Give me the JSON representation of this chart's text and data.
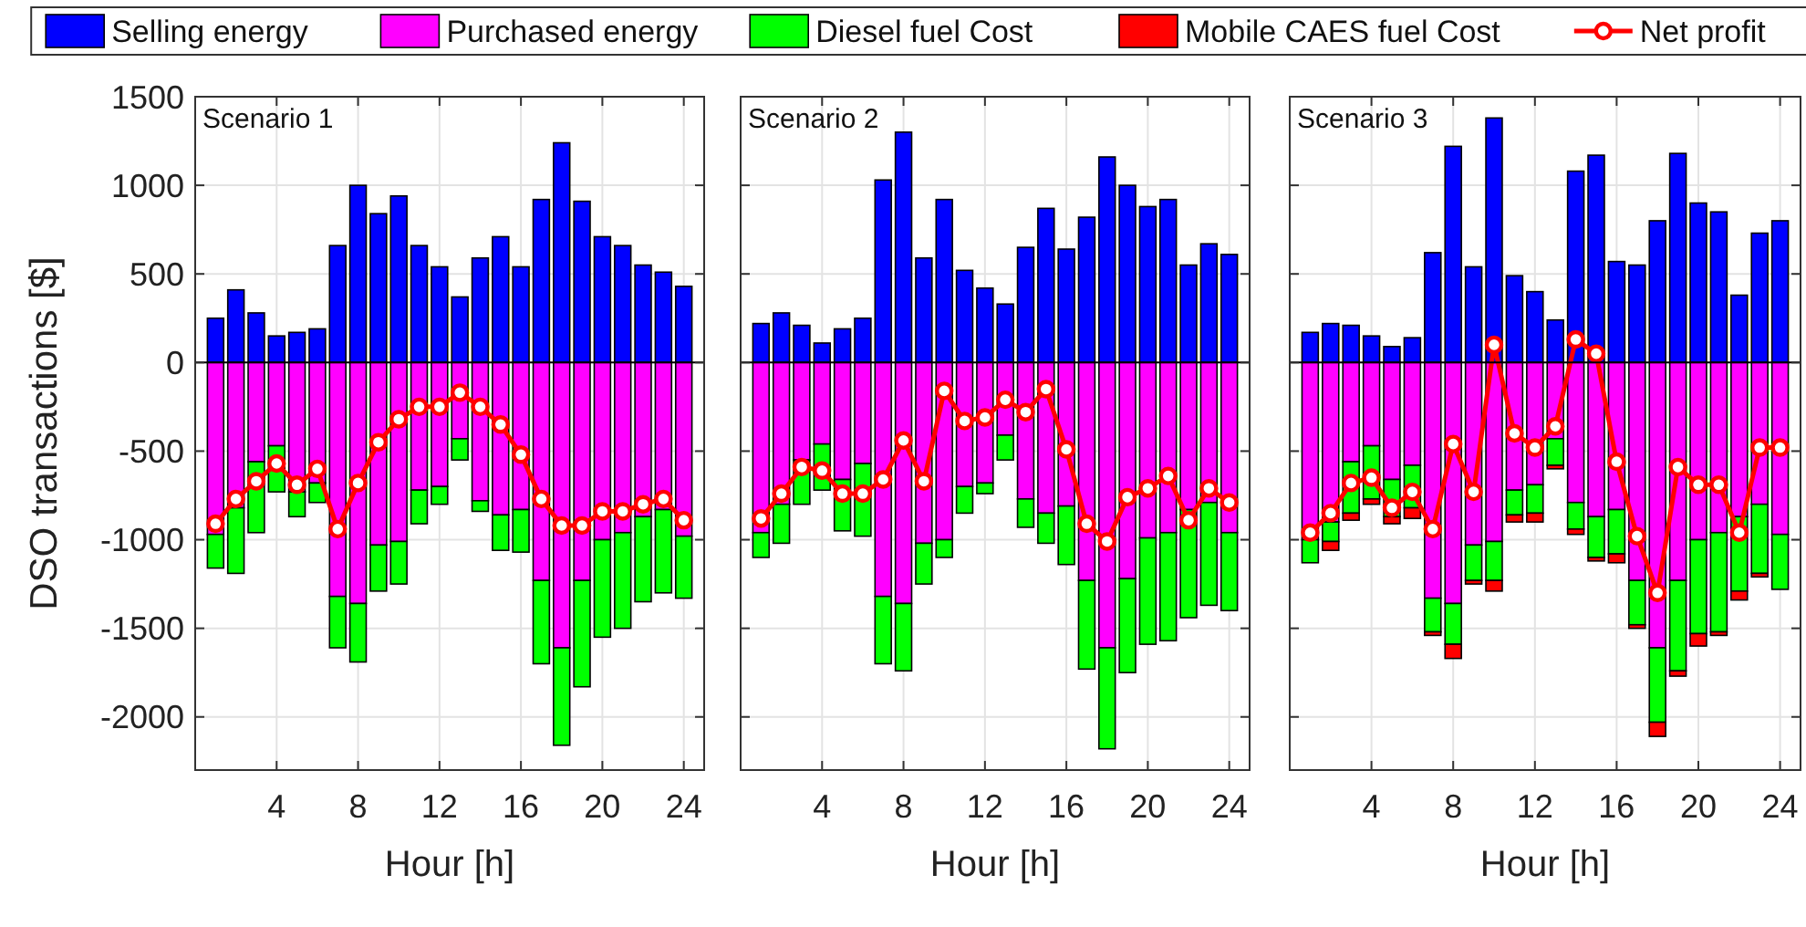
{
  "chart_data": [
    {
      "type": "bar",
      "title": "Scenario 1",
      "xlabel": "Hour [h]",
      "ylabel": "DSO transactions [$]",
      "stacked": true,
      "grid": true,
      "legend": "top",
      "marker": "circle",
      "line_style": "solid",
      "x": [
        1,
        2,
        3,
        4,
        5,
        6,
        7,
        8,
        9,
        10,
        11,
        12,
        13,
        14,
        15,
        16,
        17,
        18,
        19,
        20,
        21,
        22,
        23,
        24
      ],
      "xlim": [
        0,
        25
      ],
      "xticks": [
        4,
        8,
        12,
        16,
        20,
        24
      ],
      "ylim": [
        -2300,
        1500
      ],
      "yticks": [
        -2000,
        -1500,
        -1000,
        -500,
        0,
        500,
        1000,
        1500
      ],
      "series": [
        {
          "name": "Selling energy",
          "color": "#0000ff",
          "values": [
            250,
            410,
            280,
            150,
            170,
            190,
            660,
            1000,
            840,
            940,
            660,
            540,
            370,
            590,
            710,
            540,
            920,
            1240,
            910,
            710,
            660,
            550,
            510,
            430
          ]
        },
        {
          "name": "Purchased energy",
          "color": "#ff00ff",
          "values": [
            -970,
            -820,
            -560,
            -470,
            -730,
            -680,
            -1320,
            -1360,
            -1030,
            -1010,
            -720,
            -700,
            -430,
            -780,
            -860,
            -830,
            -1230,
            -1610,
            -1230,
            -1000,
            -960,
            -870,
            -830,
            -980
          ]
        },
        {
          "name": "Diesel fuel Cost",
          "color": "#00ff00",
          "values": [
            -190,
            -370,
            -400,
            -260,
            -140,
            -110,
            -290,
            -330,
            -260,
            -240,
            -190,
            -100,
            -120,
            -60,
            -200,
            -240,
            -470,
            -550,
            -600,
            -550,
            -540,
            -480,
            -470,
            -350
          ]
        },
        {
          "name": "Mobile CAES fuel Cost",
          "color": "#ff0000",
          "values": [
            null,
            null,
            null,
            null,
            null,
            null,
            null,
            null,
            null,
            null,
            null,
            null,
            null,
            null,
            null,
            null,
            null,
            null,
            null,
            null,
            null,
            null,
            null,
            null
          ]
        },
        {
          "name": "Net profit",
          "type": "line",
          "color": "#ff0000",
          "values": [
            -910,
            -770,
            -670,
            -570,
            -690,
            -600,
            -940,
            -680,
            -450,
            -320,
            -250,
            -250,
            -170,
            -250,
            -350,
            -520,
            -770,
            -920,
            -920,
            -840,
            -840,
            -800,
            -770,
            -890
          ]
        }
      ]
    },
    {
      "type": "bar",
      "title": "Scenario 2",
      "xlabel": "Hour [h]",
      "stacked": true,
      "grid": true,
      "marker": "circle",
      "line_style": "solid",
      "tick_labels": "x",
      "x": [
        1,
        2,
        3,
        4,
        5,
        6,
        7,
        8,
        9,
        10,
        11,
        12,
        13,
        14,
        15,
        16,
        17,
        18,
        19,
        20,
        21,
        22,
        23,
        24
      ],
      "xlim": [
        0,
        25
      ],
      "xticks": [
        4,
        8,
        12,
        16,
        20,
        24
      ],
      "ylim": [
        -2300,
        1500
      ],
      "yticks": [
        -2000,
        -1500,
        -1000,
        -500,
        0,
        500,
        1000,
        1500
      ],
      "series": [
        {
          "color": "#0000ff",
          "values": [
            220,
            280,
            210,
            110,
            190,
            250,
            1030,
            1300,
            590,
            920,
            520,
            420,
            330,
            650,
            870,
            640,
            820,
            1160,
            1000,
            880,
            920,
            550,
            670,
            610
          ]
        },
        {
          "color": "#ff00ff",
          "values": [
            -960,
            -800,
            -550,
            -460,
            -660,
            -570,
            -1320,
            -1360,
            -1020,
            -1000,
            -700,
            -680,
            -410,
            -770,
            -850,
            -810,
            -1230,
            -1610,
            -1220,
            -990,
            -960,
            -830,
            -790,
            -960
          ]
        },
        {
          "color": "#00ff00",
          "values": [
            -140,
            -220,
            -250,
            -260,
            -290,
            -410,
            -380,
            -380,
            -230,
            -100,
            -150,
            -60,
            -140,
            -160,
            -170,
            -330,
            -500,
            -570,
            -530,
            -600,
            -610,
            -610,
            -580,
            -440
          ]
        },
        {
          "type": "line",
          "color": "#ff0000",
          "values": [
            -880,
            -740,
            -590,
            -610,
            -740,
            -740,
            -660,
            -440,
            -670,
            -160,
            -330,
            -310,
            -210,
            -280,
            -150,
            -490,
            -910,
            -1010,
            -760,
            -710,
            -640,
            -890,
            -710,
            -790
          ]
        }
      ]
    },
    {
      "type": "bar",
      "title": "Scenario 3",
      "xlabel": "Hour [h]",
      "stacked": true,
      "grid": true,
      "marker": "circle",
      "line_style": "solid",
      "tick_labels": "x",
      "x": [
        1,
        2,
        3,
        4,
        5,
        6,
        7,
        8,
        9,
        10,
        11,
        12,
        13,
        14,
        15,
        16,
        17,
        18,
        19,
        20,
        21,
        22,
        23,
        24
      ],
      "xlim": [
        0,
        25
      ],
      "xticks": [
        4,
        8,
        12,
        16,
        20,
        24
      ],
      "ylim": [
        -2300,
        1500
      ],
      "yticks": [
        -2000,
        -1500,
        -1000,
        -500,
        0,
        500,
        1000,
        1500
      ],
      "series": [
        {
          "color": "#0000ff",
          "values": [
            170,
            220,
            210,
            150,
            90,
            140,
            620,
            1220,
            540,
            1380,
            490,
            400,
            240,
            1080,
            1170,
            570,
            550,
            800,
            1180,
            900,
            850,
            380,
            730,
            800
          ]
        },
        {
          "color": "#ff00ff",
          "values": [
            -1000,
            -900,
            -560,
            -470,
            -660,
            -580,
            -1330,
            -1360,
            -1030,
            -1010,
            -720,
            -690,
            -430,
            -790,
            -870,
            -830,
            -1230,
            -1610,
            -1230,
            -1000,
            -960,
            -870,
            -800,
            -970
          ]
        },
        {
          "color": "#00ff00",
          "values": [
            -130,
            -110,
            -290,
            -300,
            -210,
            -240,
            -190,
            -230,
            -200,
            -220,
            -140,
            -160,
            -150,
            -150,
            -230,
            -250,
            -250,
            -420,
            -510,
            -530,
            -560,
            -420,
            -390,
            -310
          ]
        },
        {
          "color": "#ff0000",
          "values": [
            null,
            -50,
            -40,
            -30,
            -40,
            -60,
            -20,
            -80,
            -20,
            -60,
            -40,
            -50,
            -20,
            -30,
            -20,
            -50,
            -20,
            -80,
            -30,
            -70,
            -20,
            -50,
            -20,
            null
          ]
        },
        {
          "type": "line",
          "color": "#ff0000",
          "values": [
            -960,
            -850,
            -680,
            -650,
            -820,
            -730,
            -940,
            -460,
            -730,
            100,
            -400,
            -480,
            -360,
            130,
            50,
            -560,
            -980,
            -1300,
            -590,
            -690,
            -690,
            -960,
            -480,
            -480
          ]
        }
      ]
    }
  ]
}
